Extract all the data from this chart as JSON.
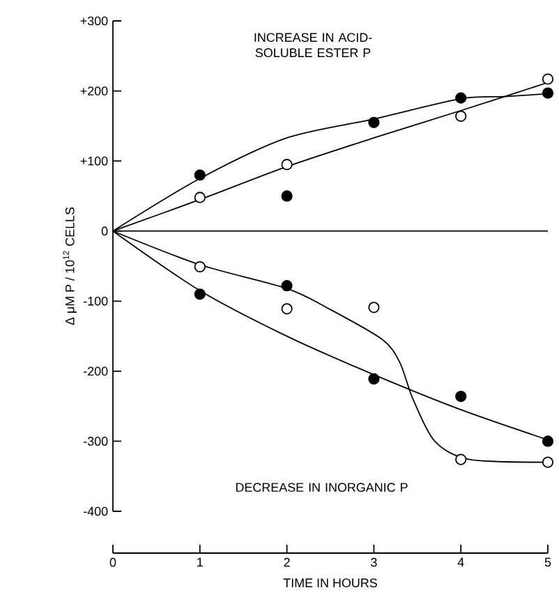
{
  "chart_data": {
    "type": "scatter",
    "xlabel": "TIME IN HOURS",
    "ylabel": "Δ μM P / 10$^{12}$ CELLS",
    "annotations": [
      "INCREASE IN ACID-SOLUBLE ESTER P",
      "DECREASE IN INORGANIC P"
    ],
    "x": [
      1,
      2,
      3,
      4,
      5
    ],
    "xlim": [
      0,
      5
    ],
    "xticks": [
      0,
      1,
      2,
      3,
      4,
      5
    ],
    "ylim": [
      -400,
      300
    ],
    "yticks": [
      {
        "value": -400,
        "label": "-400"
      },
      {
        "value": -300,
        "label": "-300"
      },
      {
        "value": -200,
        "label": "-200"
      },
      {
        "value": -100,
        "label": "-100"
      },
      {
        "value": 0,
        "label": "0"
      },
      {
        "value": 100,
        "label": "+100"
      },
      {
        "value": 200,
        "label": "+200"
      },
      {
        "value": 300,
        "label": "+300"
      }
    ],
    "marker": "circle",
    "ref_lines": [
      {
        "axis": "y",
        "value": 0,
        "color": "#000000"
      }
    ],
    "series": [
      {
        "color": "#000000",
        "values": [
          80,
          50,
          155,
          190,
          197
        ]
      },
      {
        "color": "#ffffff",
        "values": [
          48,
          95,
          null,
          164,
          217
        ]
      },
      {
        "color": "#000000",
        "values": [
          -90,
          -78,
          -211,
          -236,
          -300
        ]
      },
      {
        "color": "#ffffff",
        "values": [
          -51,
          -111,
          -109,
          -326,
          -330
        ]
      },
      {
        "type": "line",
        "marker": "none",
        "color": "#000000",
        "x": [
          0,
          1,
          2,
          3,
          4,
          4.5,
          5
        ],
        "values": [
          0,
          75,
          133,
          160,
          189,
          192,
          196
        ]
      },
      {
        "type": "line",
        "marker": "none",
        "color": "#000000",
        "x": [
          0,
          1,
          2,
          3,
          4,
          5
        ],
        "values": [
          0,
          45,
          92,
          133,
          172,
          212
        ]
      },
      {
        "type": "line",
        "marker": "none",
        "color": "#000000",
        "x": [
          0,
          1,
          2,
          2.5,
          3.1,
          3.3,
          3.45,
          3.7,
          4.1,
          5
        ],
        "values": [
          0,
          -48,
          -82,
          -112,
          -155,
          -188,
          -240,
          -300,
          -326,
          -330
        ]
      },
      {
        "type": "line",
        "marker": "none",
        "color": "#000000",
        "x": [
          0,
          1,
          2,
          3,
          4,
          5
        ],
        "values": [
          0,
          -85,
          -150,
          -205,
          -255,
          -298
        ]
      }
    ]
  }
}
